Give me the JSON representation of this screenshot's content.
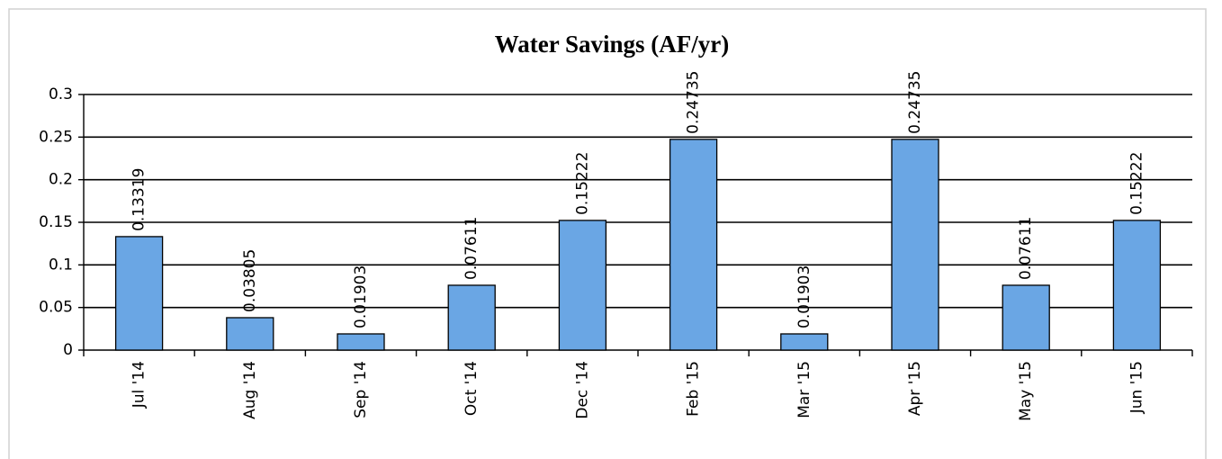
{
  "chart_data": {
    "type": "bar",
    "title": "Water Savings (AF/yr)",
    "categories": [
      "Jul '14",
      "Aug '14",
      "Sep '14",
      "Oct '14",
      "Dec '14",
      "Feb '15",
      "Mar '15",
      "Apr '15",
      "May '15",
      "Jun '15"
    ],
    "values": [
      0.13319,
      0.03805,
      0.01903,
      0.07611,
      0.15222,
      0.24735,
      0.01903,
      0.24735,
      0.07611,
      0.15222
    ],
    "color": "#6aa6e4",
    "ylim": [
      0,
      0.3
    ],
    "yticks": [
      0,
      0.05,
      0.1,
      0.15,
      0.2,
      0.25,
      0.3
    ],
    "grid": true
  }
}
